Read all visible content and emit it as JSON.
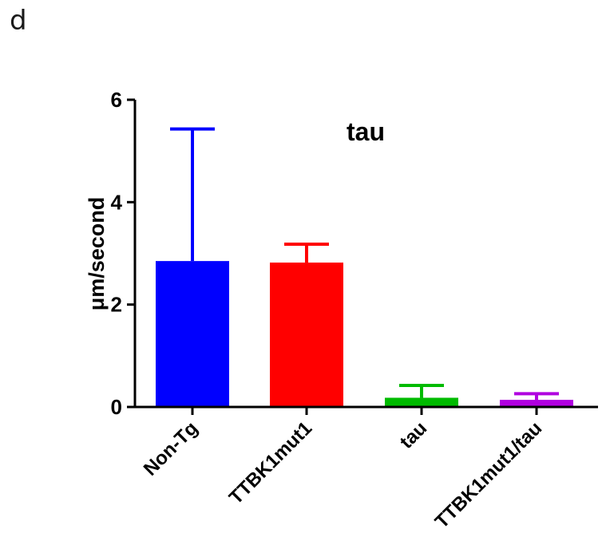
{
  "panel_letter": "d",
  "chart_data": {
    "type": "bar",
    "title": "tau",
    "xlabel": "",
    "ylabel": "μm/second",
    "ylim": [
      0,
      6
    ],
    "yticks": [
      "0",
      "2",
      "4",
      "6"
    ],
    "grid": false,
    "categories": [
      "Non-Tg",
      "TTBK1mut1",
      "tau",
      "TTBK1mut1/tau"
    ],
    "values": [
      2.85,
      2.82,
      0.18,
      0.14
    ],
    "errors": [
      2.58,
      0.36,
      0.24,
      0.12
    ],
    "colors": [
      "#0000ff",
      "#ff0000",
      "#00bb00",
      "#b000e0"
    ]
  }
}
